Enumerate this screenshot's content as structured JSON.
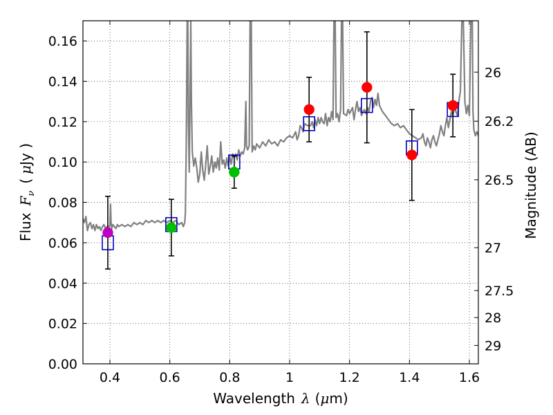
{
  "chart_data": {
    "type": "scatter",
    "title": "",
    "xlabel": "Wavelength",
    "xlabel_symbol": "λ",
    "xlabel_unit_open": "(",
    "xlabel_unit_mu": "μ",
    "xlabel_unit_rest": "m)",
    "ylabel": "Flux",
    "ylabel_symbol": "F",
    "ylabel_symbol_sub": "ν",
    "ylabel_unit_open": "(",
    "ylabel_unit_mu": "μ",
    "ylabel_unit_rest": "Jy )",
    "y2label": "Magnitude (AB)",
    "xlim": [
      0.31,
      1.63
    ],
    "ylim": [
      0.0,
      0.17
    ],
    "grid": true,
    "x_ticks": [
      {
        "value": 0.4,
        "label": "0.4"
      },
      {
        "value": 0.6,
        "label": "0.6"
      },
      {
        "value": 0.8,
        "label": "0.8"
      },
      {
        "value": 1.0,
        "label": "1"
      },
      {
        "value": 1.2,
        "label": "1.2"
      },
      {
        "value": 1.4,
        "label": "1.4"
      },
      {
        "value": 1.6,
        "label": "1.6"
      }
    ],
    "y_ticks": [
      {
        "value": 0.0,
        "label": "0.00"
      },
      {
        "value": 0.02,
        "label": "0.02"
      },
      {
        "value": 0.04,
        "label": "0.04"
      },
      {
        "value": 0.06,
        "label": "0.06"
      },
      {
        "value": 0.08,
        "label": "0.08"
      },
      {
        "value": 0.1,
        "label": "0.10"
      },
      {
        "value": 0.12,
        "label": "0.12"
      },
      {
        "value": 0.14,
        "label": "0.14"
      },
      {
        "value": 0.16,
        "label": "0.16"
      }
    ],
    "y2_ticks": [
      {
        "mag": 26,
        "label": "26"
      },
      {
        "mag": 26.2,
        "label": "26.2"
      },
      {
        "mag": 26.5,
        "label": "26.5"
      },
      {
        "mag": 27,
        "label": "27"
      },
      {
        "mag": 27.5,
        "label": "27.5"
      },
      {
        "mag": 28,
        "label": "28"
      },
      {
        "mag": 29,
        "label": "29"
      }
    ],
    "series": [
      {
        "name": "model-spectrum",
        "kind": "line",
        "color": "#808080",
        "points": [
          [
            0.31,
            0.072
          ],
          [
            0.315,
            0.07
          ],
          [
            0.32,
            0.073
          ],
          [
            0.325,
            0.066
          ],
          [
            0.33,
            0.069
          ],
          [
            0.335,
            0.07
          ],
          [
            0.34,
            0.067
          ],
          [
            0.345,
            0.069
          ],
          [
            0.35,
            0.066
          ],
          [
            0.355,
            0.069
          ],
          [
            0.36,
            0.067
          ],
          [
            0.365,
            0.068
          ],
          [
            0.37,
            0.066
          ],
          [
            0.375,
            0.068
          ],
          [
            0.38,
            0.069
          ],
          [
            0.385,
            0.067
          ],
          [
            0.39,
            0.068
          ],
          [
            0.395,
            0.066
          ],
          [
            0.4,
            0.069
          ],
          [
            0.402,
            0.079
          ],
          [
            0.404,
            0.07
          ],
          [
            0.406,
            0.067
          ],
          [
            0.41,
            0.069
          ],
          [
            0.415,
            0.068
          ],
          [
            0.42,
            0.067
          ],
          [
            0.425,
            0.069
          ],
          [
            0.43,
            0.068
          ],
          [
            0.44,
            0.069
          ],
          [
            0.45,
            0.068
          ],
          [
            0.46,
            0.069
          ],
          [
            0.47,
            0.068
          ],
          [
            0.48,
            0.07
          ],
          [
            0.49,
            0.069
          ],
          [
            0.5,
            0.07
          ],
          [
            0.51,
            0.069
          ],
          [
            0.52,
            0.071
          ],
          [
            0.53,
            0.07
          ],
          [
            0.54,
            0.071
          ],
          [
            0.55,
            0.07
          ],
          [
            0.56,
            0.071
          ],
          [
            0.57,
            0.07
          ],
          [
            0.58,
            0.071
          ],
          [
            0.59,
            0.07
          ],
          [
            0.6,
            0.071
          ],
          [
            0.61,
            0.07
          ],
          [
            0.62,
            0.071
          ],
          [
            0.63,
            0.069
          ],
          [
            0.64,
            0.07
          ],
          [
            0.645,
            0.068
          ],
          [
            0.65,
            0.07
          ],
          [
            0.652,
            0.075
          ],
          [
            0.655,
            0.11
          ],
          [
            0.658,
            0.17
          ],
          [
            0.66,
            0.17
          ],
          [
            0.662,
            0.12
          ],
          [
            0.665,
            0.095
          ],
          [
            0.668,
            0.14
          ],
          [
            0.67,
            0.17
          ],
          [
            0.672,
            0.13
          ],
          [
            0.675,
            0.105
          ],
          [
            0.68,
            0.098
          ],
          [
            0.685,
            0.102
          ],
          [
            0.69,
            0.097
          ],
          [
            0.695,
            0.09
          ],
          [
            0.7,
            0.094
          ],
          [
            0.705,
            0.105
          ],
          [
            0.71,
            0.096
          ],
          [
            0.715,
            0.091
          ],
          [
            0.72,
            0.099
          ],
          [
            0.725,
            0.108
          ],
          [
            0.73,
            0.094
          ],
          [
            0.735,
            0.098
          ],
          [
            0.74,
            0.103
          ],
          [
            0.745,
            0.095
          ],
          [
            0.75,
            0.1
          ],
          [
            0.755,
            0.097
          ],
          [
            0.76,
            0.102
          ],
          [
            0.765,
            0.096
          ],
          [
            0.77,
            0.11
          ],
          [
            0.775,
            0.099
          ],
          [
            0.78,
            0.101
          ],
          [
            0.785,
            0.097
          ],
          [
            0.79,
            0.102
          ],
          [
            0.795,
            0.098
          ],
          [
            0.8,
            0.103
          ],
          [
            0.805,
            0.099
          ],
          [
            0.81,
            0.104
          ],
          [
            0.815,
            0.102
          ],
          [
            0.82,
            0.104
          ],
          [
            0.825,
            0.101
          ],
          [
            0.83,
            0.106
          ],
          [
            0.835,
            0.103
          ],
          [
            0.84,
            0.105
          ],
          [
            0.845,
            0.104
          ],
          [
            0.85,
            0.107
          ],
          [
            0.852,
            0.12
          ],
          [
            0.854,
            0.13
          ],
          [
            0.856,
            0.108
          ],
          [
            0.86,
            0.106
          ],
          [
            0.865,
            0.108
          ],
          [
            0.868,
            0.17
          ],
          [
            0.872,
            0.17
          ],
          [
            0.875,
            0.105
          ],
          [
            0.88,
            0.108
          ],
          [
            0.885,
            0.106
          ],
          [
            0.89,
            0.109
          ],
          [
            0.9,
            0.107
          ],
          [
            0.91,
            0.11
          ],
          [
            0.92,
            0.108
          ],
          [
            0.93,
            0.111
          ],
          [
            0.94,
            0.109
          ],
          [
            0.95,
            0.11
          ],
          [
            0.96,
            0.108
          ],
          [
            0.97,
            0.111
          ],
          [
            0.98,
            0.11
          ],
          [
            0.99,
            0.112
          ],
          [
            1.0,
            0.113
          ],
          [
            1.01,
            0.112
          ],
          [
            1.02,
            0.115
          ],
          [
            1.025,
            0.111
          ],
          [
            1.03,
            0.113
          ],
          [
            1.035,
            0.118
          ],
          [
            1.04,
            0.117
          ],
          [
            1.045,
            0.115
          ],
          [
            1.05,
            0.119
          ],
          [
            1.06,
            0.118
          ],
          [
            1.07,
            0.118
          ],
          [
            1.075,
            0.12
          ],
          [
            1.08,
            0.117
          ],
          [
            1.085,
            0.121
          ],
          [
            1.09,
            0.118
          ],
          [
            1.095,
            0.122
          ],
          [
            1.1,
            0.119
          ],
          [
            1.105,
            0.122
          ],
          [
            1.11,
            0.12
          ],
          [
            1.115,
            0.119
          ],
          [
            1.12,
            0.124
          ],
          [
            1.125,
            0.118
          ],
          [
            1.13,
            0.122
          ],
          [
            1.135,
            0.12
          ],
          [
            1.14,
            0.125
          ],
          [
            1.145,
            0.121
          ],
          [
            1.148,
            0.17
          ],
          [
            1.152,
            0.17
          ],
          [
            1.155,
            0.122
          ],
          [
            1.16,
            0.124
          ],
          [
            1.165,
            0.12
          ],
          [
            1.17,
            0.126
          ],
          [
            1.173,
            0.17
          ],
          [
            1.177,
            0.17
          ],
          [
            1.18,
            0.124
          ],
          [
            1.19,
            0.123
          ],
          [
            1.195,
            0.126
          ],
          [
            1.2,
            0.124
          ],
          [
            1.21,
            0.127
          ],
          [
            1.215,
            0.121
          ],
          [
            1.22,
            0.126
          ],
          [
            1.225,
            0.13
          ],
          [
            1.23,
            0.125
          ],
          [
            1.235,
            0.127
          ],
          [
            1.24,
            0.123
          ],
          [
            1.245,
            0.125
          ],
          [
            1.25,
            0.126
          ],
          [
            1.255,
            0.124
          ],
          [
            1.26,
            0.127
          ],
          [
            1.265,
            0.125
          ],
          [
            1.27,
            0.13
          ],
          [
            1.275,
            0.132
          ],
          [
            1.28,
            0.127
          ],
          [
            1.285,
            0.131
          ],
          [
            1.29,
            0.128
          ],
          [
            1.295,
            0.134
          ],
          [
            1.3,
            0.128
          ],
          [
            1.31,
            0.125
          ],
          [
            1.32,
            0.123
          ],
          [
            1.33,
            0.121
          ],
          [
            1.34,
            0.119
          ],
          [
            1.35,
            0.118
          ],
          [
            1.36,
            0.119
          ],
          [
            1.37,
            0.117
          ],
          [
            1.38,
            0.118
          ],
          [
            1.39,
            0.116
          ],
          [
            1.4,
            0.114
          ],
          [
            1.41,
            0.113
          ],
          [
            1.42,
            0.112
          ],
          [
            1.43,
            0.111
          ],
          [
            1.44,
            0.112
          ],
          [
            1.445,
            0.114
          ],
          [
            1.45,
            0.11
          ],
          [
            1.455,
            0.108
          ],
          [
            1.46,
            0.112
          ],
          [
            1.465,
            0.11
          ],
          [
            1.47,
            0.107
          ],
          [
            1.475,
            0.111
          ],
          [
            1.48,
            0.113
          ],
          [
            1.485,
            0.11
          ],
          [
            1.49,
            0.108
          ],
          [
            1.495,
            0.111
          ],
          [
            1.5,
            0.114
          ],
          [
            1.505,
            0.118
          ],
          [
            1.51,
            0.115
          ],
          [
            1.515,
            0.113
          ],
          [
            1.52,
            0.118
          ],
          [
            1.525,
            0.122
          ],
          [
            1.53,
            0.117
          ],
          [
            1.535,
            0.121
          ],
          [
            1.54,
            0.125
          ],
          [
            1.545,
            0.123
          ],
          [
            1.55,
            0.127
          ],
          [
            1.555,
            0.125
          ],
          [
            1.56,
            0.123
          ],
          [
            1.565,
            0.13
          ],
          [
            1.57,
            0.135
          ],
          [
            1.575,
            0.17
          ],
          [
            1.58,
            0.17
          ],
          [
            1.585,
            0.13
          ],
          [
            1.59,
            0.124
          ],
          [
            1.595,
            0.128
          ],
          [
            1.6,
            0.123
          ],
          [
            1.605,
            0.17
          ],
          [
            1.61,
            0.17
          ],
          [
            1.612,
            0.125
          ],
          [
            1.615,
            0.116
          ],
          [
            1.62,
            0.113
          ],
          [
            1.625,
            0.115
          ],
          [
            1.63,
            0.113
          ]
        ]
      },
      {
        "name": "observed-photometry",
        "kind": "points-with-errors",
        "points": [
          {
            "x": 0.393,
            "y": 0.065,
            "err": 0.018,
            "color": "#bf00bf"
          },
          {
            "x": 0.605,
            "y": 0.0675,
            "err": 0.014,
            "color": "#00bf00"
          },
          {
            "x": 0.815,
            "y": 0.095,
            "err": 0.008,
            "color": "#00bf00"
          },
          {
            "x": 1.065,
            "y": 0.126,
            "err": 0.016,
            "color": "#ff0000"
          },
          {
            "x": 1.258,
            "y": 0.137,
            "err": 0.0275,
            "color": "#ff0000"
          },
          {
            "x": 1.408,
            "y": 0.1035,
            "err": 0.0225,
            "color": "#ff0000"
          },
          {
            "x": 1.545,
            "y": 0.128,
            "err": 0.0155,
            "color": "#ff0000"
          }
        ]
      },
      {
        "name": "model-photometry",
        "kind": "open-squares",
        "color": "#0000bf",
        "points": [
          {
            "x": 0.393,
            "y": 0.06
          },
          {
            "x": 0.605,
            "y": 0.069
          },
          {
            "x": 0.815,
            "y": 0.1
          },
          {
            "x": 1.065,
            "y": 0.119
          },
          {
            "x": 1.258,
            "y": 0.128
          },
          {
            "x": 1.408,
            "y": 0.107
          },
          {
            "x": 1.545,
            "y": 0.126
          }
        ]
      }
    ]
  }
}
